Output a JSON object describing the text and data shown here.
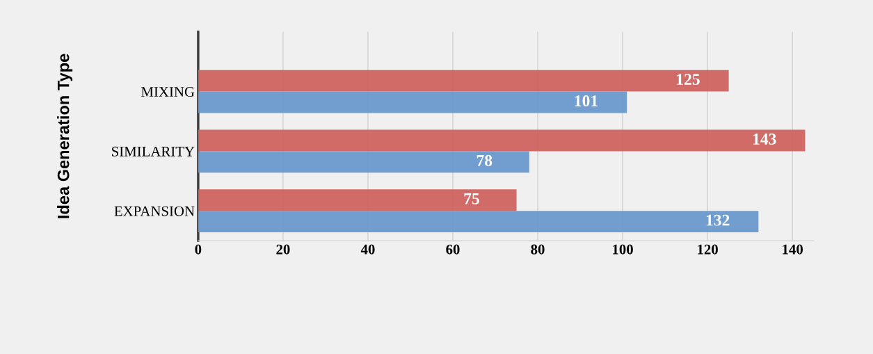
{
  "chart_data": {
    "type": "bar",
    "orientation": "horizontal",
    "ylabel": "Idea Generation Type",
    "categories": [
      "MIXING",
      "SIMILARITY",
      "EXPANSION"
    ],
    "series": [
      {
        "color": "#cd6360",
        "values": [
          125,
          143,
          75
        ]
      },
      {
        "color": "#6a98cc",
        "values": [
          101,
          78,
          132
        ]
      }
    ],
    "xlim": [
      0,
      145
    ],
    "xticks": [
      0,
      20,
      40,
      60,
      80,
      100,
      120,
      140
    ],
    "grid": "x",
    "data_labels": true
  }
}
